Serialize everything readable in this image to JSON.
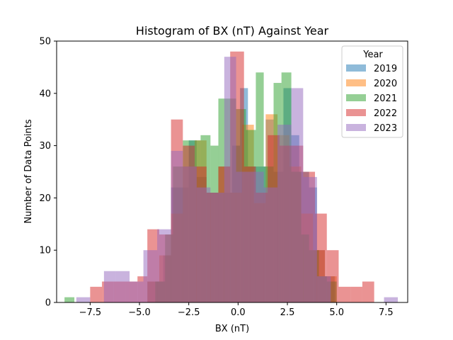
{
  "chart_data": {
    "type": "bar",
    "title": "Histogram of BX (nT) Against Year",
    "xlabel": "BX (nT)",
    "ylabel": "Number of Data Points",
    "xlim": [
      -9.2,
      8.6
    ],
    "ylim": [
      0,
      50
    ],
    "xticks": [
      -7.5,
      -5.0,
      -2.5,
      0.0,
      2.5,
      5.0,
      7.5
    ],
    "xtick_labels": [
      "−7.5",
      "−5.0",
      "−2.5",
      "0.0",
      "2.5",
      "5.0",
      "7.5"
    ],
    "yticks": [
      0,
      10,
      20,
      30,
      40,
      50
    ],
    "ytick_labels": [
      "0",
      "10",
      "20",
      "30",
      "40",
      "50"
    ],
    "grid": false,
    "legend_title": "Year",
    "legend_position": "top-right",
    "bar_alpha": 0.5,
    "series": [
      {
        "name": "2019",
        "color": "#1f77b4",
        "bins": [
          {
            "x0": -4.6,
            "x1": -4.2,
            "y": 4
          },
          {
            "x0": -4.2,
            "x1": -3.8,
            "y": 4
          },
          {
            "x0": -3.8,
            "x1": -3.4,
            "y": 9
          },
          {
            "x0": -3.4,
            "x1": -2.9,
            "y": 22
          },
          {
            "x0": -2.9,
            "x1": -2.5,
            "y": 22
          },
          {
            "x0": -2.5,
            "x1": -2.1,
            "y": 31
          },
          {
            "x0": -2.1,
            "x1": -1.6,
            "y": 24
          },
          {
            "x0": -1.6,
            "x1": -1.2,
            "y": 21
          },
          {
            "x0": -1.2,
            "x1": -0.8,
            "y": 21
          },
          {
            "x0": -0.8,
            "x1": -0.3,
            "y": 21
          },
          {
            "x0": -0.3,
            "x1": 0.1,
            "y": 30
          },
          {
            "x0": 0.1,
            "x1": 0.5,
            "y": 41
          },
          {
            "x0": 0.5,
            "x1": 1.0,
            "y": 26
          },
          {
            "x0": 1.0,
            "x1": 1.4,
            "y": 26
          },
          {
            "x0": 1.4,
            "x1": 1.8,
            "y": 35
          },
          {
            "x0": 1.8,
            "x1": 2.3,
            "y": 25
          },
          {
            "x0": 2.3,
            "x1": 2.7,
            "y": 41
          },
          {
            "x0": 2.7,
            "x1": 3.1,
            "y": 32
          },
          {
            "x0": 3.1,
            "x1": 3.6,
            "y": 25
          },
          {
            "x0": 3.6,
            "x1": 4.0,
            "y": 22
          },
          {
            "x0": 4.0,
            "x1": 4.4,
            "y": 10
          },
          {
            "x0": 4.4,
            "x1": 4.9,
            "y": 5
          }
        ]
      },
      {
        "name": "2020",
        "color": "#ff7f0e",
        "bins": [
          {
            "x0": -4.6,
            "x1": -4.0,
            "y": 4
          },
          {
            "x0": -4.0,
            "x1": -3.4,
            "y": 9
          },
          {
            "x0": -3.4,
            "x1": -2.8,
            "y": 17
          },
          {
            "x0": -2.8,
            "x1": -2.2,
            "y": 26
          },
          {
            "x0": -2.2,
            "x1": -1.6,
            "y": 31
          },
          {
            "x0": -1.6,
            "x1": -1.0,
            "y": 21
          },
          {
            "x0": -1.0,
            "x1": -0.4,
            "y": 26
          },
          {
            "x0": -0.4,
            "x1": 0.2,
            "y": 21
          },
          {
            "x0": 0.2,
            "x1": 0.8,
            "y": 34
          },
          {
            "x0": 0.8,
            "x1": 1.4,
            "y": 19
          },
          {
            "x0": 1.4,
            "x1": 2.0,
            "y": 36
          },
          {
            "x0": 2.0,
            "x1": 2.6,
            "y": 32
          },
          {
            "x0": 2.6,
            "x1": 3.2,
            "y": 26
          },
          {
            "x0": 3.2,
            "x1": 3.8,
            "y": 17
          },
          {
            "x0": 3.8,
            "x1": 4.4,
            "y": 10
          },
          {
            "x0": 4.4,
            "x1": 5.0,
            "y": 5
          }
        ]
      },
      {
        "name": "2021",
        "color": "#2ca02c",
        "bins": [
          {
            "x0": -8.8,
            "x1": -8.3,
            "y": 1
          },
          {
            "x0": -8.3,
            "x1": -4.2,
            "y": 0
          },
          {
            "x0": -4.2,
            "x1": -3.7,
            "y": 4
          },
          {
            "x0": -3.7,
            "x1": -3.3,
            "y": 13
          },
          {
            "x0": -3.3,
            "x1": -2.8,
            "y": 26
          },
          {
            "x0": -2.8,
            "x1": -2.4,
            "y": 31
          },
          {
            "x0": -2.4,
            "x1": -1.9,
            "y": 31
          },
          {
            "x0": -1.9,
            "x1": -1.4,
            "y": 32
          },
          {
            "x0": -1.4,
            "x1": -1.0,
            "y": 30
          },
          {
            "x0": -1.0,
            "x1": -0.5,
            "y": 39
          },
          {
            "x0": -0.5,
            "x1": -0.1,
            "y": 39
          },
          {
            "x0": -0.1,
            "x1": 0.4,
            "y": 37
          },
          {
            "x0": 0.4,
            "x1": 0.9,
            "y": 33
          },
          {
            "x0": 0.9,
            "x1": 1.3,
            "y": 44
          },
          {
            "x0": 1.3,
            "x1": 1.8,
            "y": 26
          },
          {
            "x0": 1.8,
            "x1": 2.2,
            "y": 42
          },
          {
            "x0": 2.2,
            "x1": 2.7,
            "y": 44
          },
          {
            "x0": 2.7,
            "x1": 3.2,
            "y": 25
          },
          {
            "x0": 3.2,
            "x1": 3.6,
            "y": 13
          },
          {
            "x0": 3.6,
            "x1": 4.1,
            "y": 10
          },
          {
            "x0": 4.1,
            "x1": 4.5,
            "y": 5
          },
          {
            "x0": 4.5,
            "x1": 5.0,
            "y": 4
          }
        ]
      },
      {
        "name": "2022",
        "color": "#d62728",
        "bins": [
          {
            "x0": -7.5,
            "x1": -6.9,
            "y": 3
          },
          {
            "x0": -6.9,
            "x1": -6.3,
            "y": 4
          },
          {
            "x0": -6.3,
            "x1": -5.7,
            "y": 4
          },
          {
            "x0": -5.7,
            "x1": -5.1,
            "y": 4
          },
          {
            "x0": -5.1,
            "x1": -4.6,
            "y": 5
          },
          {
            "x0": -4.6,
            "x1": -4.0,
            "y": 14
          },
          {
            "x0": -4.0,
            "x1": -3.4,
            "y": 13
          },
          {
            "x0": -3.4,
            "x1": -2.8,
            "y": 35
          },
          {
            "x0": -2.8,
            "x1": -2.2,
            "y": 30
          },
          {
            "x0": -2.2,
            "x1": -1.6,
            "y": 26
          },
          {
            "x0": -1.6,
            "x1": -1.0,
            "y": 21
          },
          {
            "x0": -1.0,
            "x1": -0.4,
            "y": 26
          },
          {
            "x0": -0.4,
            "x1": 0.3,
            "y": 48
          },
          {
            "x0": 0.3,
            "x1": 0.9,
            "y": 26
          },
          {
            "x0": 0.9,
            "x1": 1.5,
            "y": 21
          },
          {
            "x0": 1.5,
            "x1": 2.1,
            "y": 32
          },
          {
            "x0": 2.1,
            "x1": 2.7,
            "y": 30
          },
          {
            "x0": 2.7,
            "x1": 3.3,
            "y": 30
          },
          {
            "x0": 3.3,
            "x1": 3.9,
            "y": 25
          },
          {
            "x0": 3.9,
            "x1": 4.5,
            "y": 17
          },
          {
            "x0": 4.5,
            "x1": 5.1,
            "y": 10
          },
          {
            "x0": 5.1,
            "x1": 5.7,
            "y": 3
          },
          {
            "x0": 5.7,
            "x1": 6.3,
            "y": 3
          },
          {
            "x0": 6.3,
            "x1": 6.9,
            "y": 4
          }
        ]
      },
      {
        "name": "2023",
        "color": "#9467bd",
        "bins": [
          {
            "x0": -8.2,
            "x1": -7.5,
            "y": 1
          },
          {
            "x0": -7.5,
            "x1": -6.8,
            "y": 0
          },
          {
            "x0": -6.8,
            "x1": -6.2,
            "y": 6
          },
          {
            "x0": -6.2,
            "x1": -5.5,
            "y": 6
          },
          {
            "x0": -5.5,
            "x1": -4.8,
            "y": 4
          },
          {
            "x0": -4.8,
            "x1": -4.1,
            "y": 10
          },
          {
            "x0": -4.1,
            "x1": -3.4,
            "y": 14
          },
          {
            "x0": -3.4,
            "x1": -2.8,
            "y": 29
          },
          {
            "x0": -2.8,
            "x1": -2.1,
            "y": 26
          },
          {
            "x0": -2.1,
            "x1": -1.4,
            "y": 22
          },
          {
            "x0": -1.4,
            "x1": -0.7,
            "y": 21
          },
          {
            "x0": -0.7,
            "x1": -0.1,
            "y": 47
          },
          {
            "x0": -0.1,
            "x1": 0.6,
            "y": 25
          },
          {
            "x0": 0.6,
            "x1": 1.3,
            "y": 25
          },
          {
            "x0": 1.3,
            "x1": 2.0,
            "y": 22
          },
          {
            "x0": 2.0,
            "x1": 2.7,
            "y": 34
          },
          {
            "x0": 2.7,
            "x1": 3.3,
            "y": 41
          },
          {
            "x0": 3.3,
            "x1": 4.0,
            "y": 24
          },
          {
            "x0": 4.0,
            "x1": 4.7,
            "y": 5
          },
          {
            "x0": 4.7,
            "x1": 5.4,
            "y": 0
          },
          {
            "x0": 5.4,
            "x1": 6.0,
            "y": 0
          },
          {
            "x0": 6.0,
            "x1": 6.7,
            "y": 0
          },
          {
            "x0": 6.7,
            "x1": 7.4,
            "y": 0
          },
          {
            "x0": 7.4,
            "x1": 8.1,
            "y": 1
          }
        ]
      }
    ]
  }
}
